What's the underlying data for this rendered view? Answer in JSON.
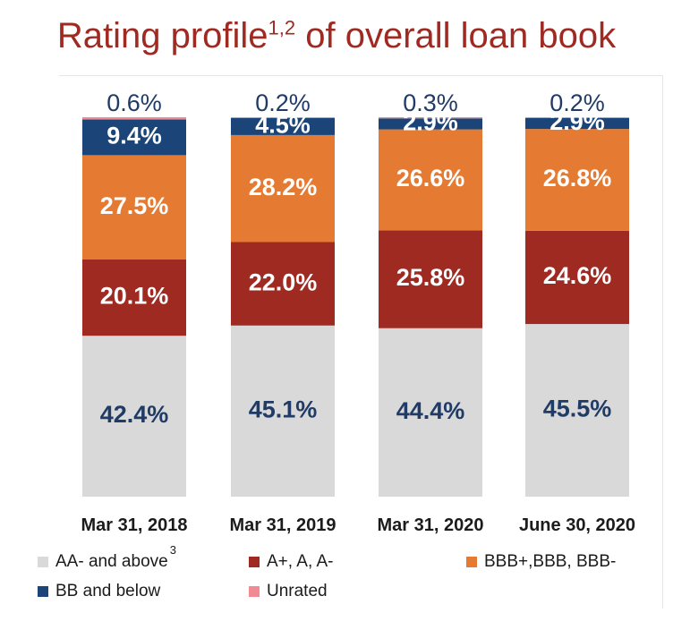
{
  "title": {
    "main": "Rating profile",
    "sup": "1,2",
    "rest": " of overall loan book"
  },
  "legend_footnote": "3",
  "chart_data": {
    "type": "bar",
    "stacked": true,
    "categories": [
      "Mar 31, 2018",
      "Mar 31, 2019",
      "Mar 31, 2020",
      "June 30, 2020"
    ],
    "series": [
      {
        "name": "AA- and above",
        "color": "#d9d9d9",
        "label_color": "#1f3b66",
        "values": [
          42.4,
          45.1,
          44.4,
          45.5
        ],
        "labels": [
          "42.4%",
          "45.1%",
          "44.4%",
          "45.5%"
        ]
      },
      {
        "name": "A+, A, A-",
        "color": "#9e2a22",
        "label_color": "#ffffff",
        "values": [
          20.1,
          22.0,
          25.8,
          24.6
        ],
        "labels": [
          "20.1%",
          "22.0%",
          "25.8%",
          "24.6%"
        ]
      },
      {
        "name": "BBB+,BBB, BBB-",
        "color": "#e57b33",
        "label_color": "#ffffff",
        "values": [
          27.5,
          28.2,
          26.6,
          26.8
        ],
        "labels": [
          "27.5%",
          "28.2%",
          "26.6%",
          "26.8%"
        ]
      },
      {
        "name": "BB and below",
        "color": "#1b4579",
        "label_color": "#ffffff",
        "values": [
          9.4,
          4.5,
          2.9,
          2.9
        ],
        "labels": [
          "9.4%",
          "4.5%",
          "2.9%",
          "2.9%"
        ]
      },
      {
        "name": "Unrated",
        "color": "#f08a93",
        "label_color": "#1f3b66",
        "values": [
          0.6,
          0.2,
          0.3,
          0.2
        ],
        "labels": [
          "0.6%",
          "0.2%",
          "0.3%",
          "0.2%"
        ]
      }
    ],
    "ylim": [
      0,
      100
    ],
    "grid": false,
    "legend_position": "bottom"
  }
}
